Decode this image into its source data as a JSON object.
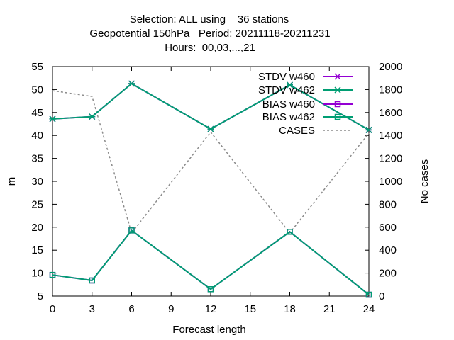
{
  "chart_data": {
    "type": "line",
    "title_lines": [
      "Selection: ALL using    36 stations",
      "Geopotential 150hPa   Period: 20211118-20211231",
      "Hours:  00,03,...,21"
    ],
    "xlabel": "Forecast length",
    "ylabel": "m",
    "y2label": "No cases",
    "x": [
      0,
      3,
      6,
      12,
      18,
      24
    ],
    "xticks": [
      "0",
      "3",
      "6",
      "9",
      "12",
      "15",
      "18",
      "21",
      "24"
    ],
    "xlim": [
      0,
      24
    ],
    "ylim": [
      5,
      55
    ],
    "y2lim": [
      0,
      2000
    ],
    "yticks": [
      "5",
      "10",
      "15",
      "20",
      "25",
      "30",
      "35",
      "40",
      "45",
      "50",
      "55"
    ],
    "y2ticks": [
      "0",
      "200",
      "400",
      "600",
      "800",
      "1000",
      "1200",
      "1400",
      "1600",
      "1800",
      "2000"
    ],
    "grid": false,
    "legend_position": "top-right",
    "series": [
      {
        "name": "STDV w460",
        "axis": "y",
        "color": "#9400d3",
        "marker": "star",
        "values": [
          43.6,
          44.1,
          51.3,
          41.4,
          51.0,
          41.2
        ]
      },
      {
        "name": "STDV w462",
        "axis": "y",
        "color": "#009e73",
        "marker": "star",
        "values": [
          43.6,
          44.1,
          51.3,
          41.4,
          51.0,
          41.2
        ]
      },
      {
        "name": "BIAS w460",
        "axis": "y",
        "color": "#9400d3",
        "marker": "square",
        "values": [
          9.6,
          8.4,
          19.3,
          6.5,
          19.0,
          5.3
        ]
      },
      {
        "name": "BIAS w462",
        "axis": "y",
        "color": "#009e73",
        "marker": "square",
        "values": [
          9.6,
          8.4,
          19.3,
          6.5,
          19.0,
          5.3
        ]
      },
      {
        "name": "CASES",
        "axis": "y2",
        "color": "#8c8c8c",
        "marker": "none",
        "dash": true,
        "values": [
          1790,
          1740,
          550,
          1430,
          550,
          1420
        ]
      }
    ]
  }
}
